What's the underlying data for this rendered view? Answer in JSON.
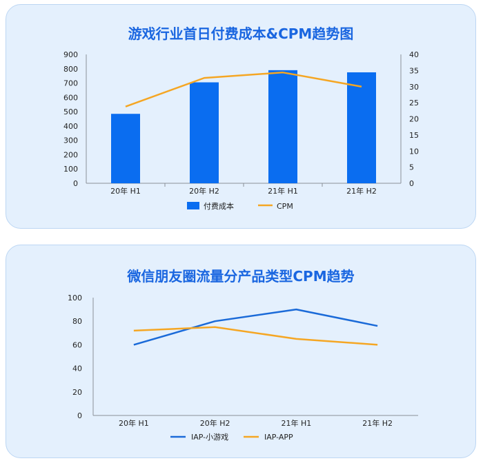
{
  "chart_data": [
    {
      "type": "bar+line",
      "title": "游戏行业首日付费成本&CPM趋势图",
      "categories": [
        "20年 H1",
        "20年 H2",
        "21年 H1",
        "21年 H2"
      ],
      "y_left": {
        "min": 0,
        "max": 900,
        "ticks": [
          0,
          100,
          200,
          300,
          400,
          500,
          600,
          700,
          800,
          900
        ]
      },
      "y_right": {
        "min": 0,
        "max": 40,
        "ticks": [
          0,
          5,
          10,
          15,
          20,
          25,
          30,
          35,
          40
        ]
      },
      "series": [
        {
          "name": "付费成本",
          "kind": "bar",
          "axis": "left",
          "color": "#0a6df0",
          "values": [
            485,
            705,
            790,
            775
          ]
        },
        {
          "name": "CPM",
          "kind": "line",
          "axis": "right",
          "color": "#f5a623",
          "values": [
            23.8,
            32.7,
            34.4,
            30
          ]
        }
      ],
      "legend": "bottom",
      "grid": false
    },
    {
      "type": "line",
      "title": "微信朋友圈流量分产品类型CPM趋势",
      "categories": [
        "20年 H1",
        "20年 H2",
        "21年 H1",
        "21年 H2"
      ],
      "y": {
        "min": 0,
        "max": 100,
        "ticks": [
          0,
          20,
          40,
          60,
          80,
          100
        ]
      },
      "series": [
        {
          "name": "IAP-小游戏",
          "color": "#1a6ad8",
          "values": [
            60,
            80,
            90,
            76
          ]
        },
        {
          "name": "IAP-APP",
          "color": "#f5a623",
          "values": [
            72,
            75,
            65,
            60
          ]
        }
      ],
      "legend": "bottom",
      "grid": false
    }
  ]
}
